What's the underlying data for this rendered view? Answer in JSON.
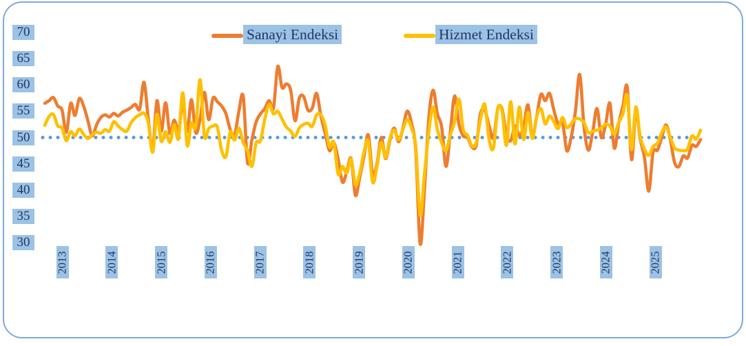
{
  "legend": {
    "items": [
      {
        "label": "Sanayi Endeksi",
        "color": "#ED7D31"
      },
      {
        "label": "Hizmet Endeksi",
        "color": "#FFC000"
      }
    ]
  },
  "y_axis": {
    "ticks": [
      "70",
      "65",
      "60",
      "55",
      "50",
      "45",
      "40",
      "35",
      "30"
    ]
  },
  "x_axis": {
    "years": [
      "2013",
      "2014",
      "2015",
      "2016",
      "2017",
      "2018",
      "2019",
      "2020",
      "2021",
      "2022",
      "2023",
      "2024",
      "2025"
    ]
  },
  "colors": {
    "highlight_bg": "#9CC2E5",
    "label_text": "#1F3864",
    "border": "#7FA8D8",
    "baseline": "#5B9BD5"
  },
  "chart_data": {
    "type": "line",
    "title": "",
    "xlabel": "",
    "ylabel": "",
    "x_unit": "month",
    "x_range": "2013-01 to 2025-09",
    "ylim": [
      30,
      70
    ],
    "y_ticks": [
      70,
      65,
      60,
      55,
      50,
      45,
      40,
      35,
      30
    ],
    "grid": false,
    "legend_position": "top-center",
    "baseline": {
      "value": 50,
      "style": "dotted",
      "color": "#5B9BD5"
    },
    "categories_years": [
      2013,
      2014,
      2015,
      2016,
      2017,
      2018,
      2019,
      2020,
      2021,
      2022,
      2023,
      2024,
      2025
    ],
    "series": [
      {
        "name": "Sanayi Endeksi",
        "color": "#ED7D31",
        "values": [
          56.5,
          57.0,
          57.6,
          56.0,
          55.2,
          51.0,
          56.5,
          54.2,
          57.4,
          56.0,
          53.2,
          50.3,
          52.4,
          53.8,
          54.3,
          53.9,
          54.6,
          54.1,
          54.8,
          55.2,
          55.7,
          56.3,
          55.4,
          60.5,
          53.5,
          47.6,
          57.0,
          51.2,
          56.6,
          50.8,
          53.3,
          51.3,
          56.5,
          51.1,
          57.2,
          50.9,
          53.5,
          58.6,
          53.4,
          57.5,
          56.8,
          56.0,
          54.5,
          51.5,
          50.5,
          55.0,
          57.8,
          45.2,
          49.5,
          53.0,
          54.5,
          55.5,
          57.0,
          55.5,
          63.5,
          59.5,
          60.2,
          59.0,
          53.2,
          57.5,
          57.8,
          55.2,
          55.6,
          58.4,
          54.1,
          50.8,
          47.5,
          49.0,
          45.9,
          41.5,
          43.5,
          46.0,
          39.0,
          42.4,
          46.5,
          50.5,
          43.0,
          45.0,
          50.0,
          46.0,
          49.5,
          51.8,
          49.2,
          51.7,
          55.0,
          52.7,
          47.5,
          29.8,
          40.0,
          53.5,
          59.0,
          54.5,
          52.0,
          44.5,
          51.0,
          57.9,
          52.5,
          50.3,
          50.0,
          48.2,
          48.5,
          54.6,
          55.2,
          52.2,
          49.9,
          55.5,
          55.4,
          50.4,
          49.4,
          52.2,
          50.4,
          52.0,
          56.2,
          50.2,
          53.9,
          58.2,
          57.0,
          58.4,
          55.2,
          52.6,
          53.0,
          47.5,
          50.0,
          55.0,
          62.0,
          52.0,
          47.6,
          51.0,
          55.5,
          50.0,
          52.5,
          56.5,
          48.0,
          52.5,
          56.0,
          59.6,
          45.8,
          55.2,
          49.8,
          46.2,
          39.8,
          47.2,
          47.6,
          50.0,
          52.4,
          49.6,
          45.2,
          44.5,
          46.5,
          46.1,
          48.5,
          48.3,
          49.6
        ]
      },
      {
        "name": "Hizmet Endeksi",
        "color": "#FFC000",
        "values": [
          52.3,
          54.0,
          54.4,
          52.2,
          51.8,
          49.4,
          51.1,
          50.3,
          51.6,
          50.6,
          49.8,
          50.5,
          51.0,
          50.8,
          51.5,
          51.2,
          53.0,
          52.2,
          51.5,
          51.2,
          52.8,
          53.8,
          54.3,
          54.6,
          52.8,
          47.2,
          54.4,
          49.3,
          51.1,
          49.1,
          52.4,
          49.8,
          58.5,
          48.5,
          52.8,
          52.0,
          61.0,
          50.3,
          51.7,
          52.2,
          52.0,
          47.5,
          46.4,
          51.1,
          49.5,
          51.8,
          49.0,
          47.5,
          44.5,
          49.0,
          49.4,
          53.5,
          56.3,
          54.5,
          55.0,
          53.5,
          52.0,
          51.2,
          50.2,
          51.8,
          52.5,
          52.7,
          52.1,
          54.3,
          54.3,
          52.3,
          48.2,
          49.1,
          43.0,
          44.5,
          43.2,
          45.9,
          41.0,
          43.2,
          47.3,
          49.3,
          41.5,
          44.5,
          49.0,
          46.2,
          49.8,
          51.4,
          49.6,
          51.5,
          53.4,
          51.8,
          48.2,
          35.2,
          43.0,
          51.0,
          55.8,
          51.5,
          49.0,
          47.5,
          50.5,
          53.0,
          57.3,
          51.5,
          50.4,
          48.4,
          49.0,
          53.5,
          56.3,
          49.6,
          48.0,
          55.5,
          55.0,
          48.5,
          56.8,
          48.8,
          55.8,
          49.6,
          54.8,
          49.8,
          53.9,
          55.5,
          52.6,
          54.1,
          53.0,
          51.7,
          53.8,
          51.9,
          52.6,
          53.6,
          53.5,
          52.8,
          50.9,
          51.2,
          51.4,
          51.8,
          52.5,
          52.2,
          50.6,
          52.8,
          54.5,
          58.0,
          47.7,
          55.8,
          50.2,
          47.8,
          46.6,
          48.3,
          48.9,
          50.9,
          52.0,
          50.0,
          48.0,
          47.6,
          47.5,
          47.8,
          50.3,
          49.7,
          51.4
        ]
      }
    ]
  }
}
